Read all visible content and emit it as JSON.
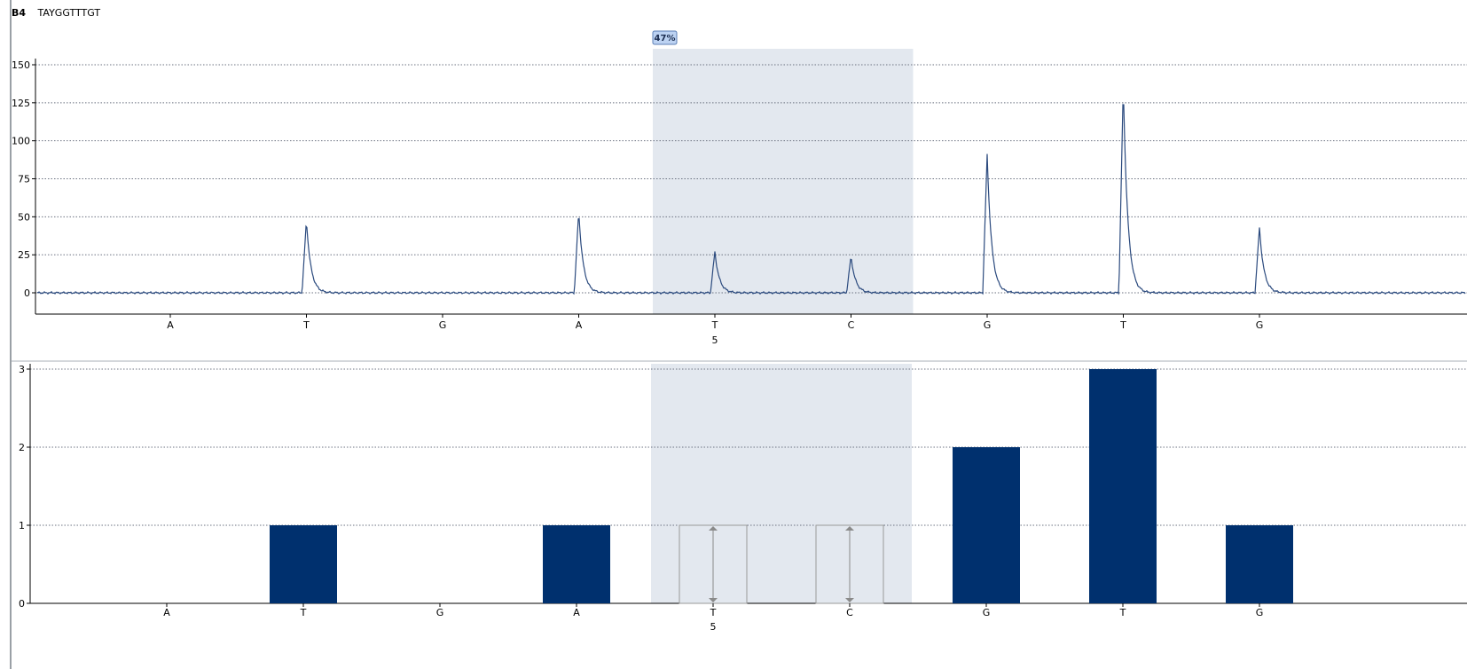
{
  "header": {
    "well": "B4",
    "sequence": "TAYGGTTTGT"
  },
  "colors": {
    "trace": "#2b4a7e",
    "bar": "#00306e",
    "shade": "#e3e8ef",
    "badge": "#bcd2f2"
  },
  "chart_data": [
    {
      "type": "line",
      "name": "pyrogram",
      "categories": [
        "A",
        "T",
        "G",
        "A",
        "T",
        "C",
        "G",
        "T",
        "G"
      ],
      "position_label": {
        "category_index": 4,
        "text": "5"
      },
      "peaks": [
        0,
        48,
        0,
        54,
        27,
        24,
        91,
        137,
        43
      ],
      "yticks": [
        0,
        25,
        50,
        75,
        100,
        125,
        150
      ],
      "ylim": [
        -14,
        162
      ],
      "highlight": {
        "from_index": 4,
        "to_index": 5,
        "label": "47%"
      },
      "grid": true
    },
    {
      "type": "bar",
      "name": "histogram",
      "categories": [
        "A",
        "T",
        "G",
        "A",
        "T",
        "C",
        "G",
        "T",
        "G"
      ],
      "position_label": {
        "category_index": 4,
        "text": "5"
      },
      "values": [
        0,
        1,
        0,
        1,
        0,
        0,
        2,
        3,
        1
      ],
      "variable_positions": [
        4,
        5
      ],
      "variable_expected": [
        1,
        1
      ],
      "yticks": [
        0,
        1,
        2,
        3
      ],
      "ylim": [
        0,
        3
      ],
      "highlight": {
        "from_index": 4,
        "to_index": 5
      },
      "grid": true
    }
  ]
}
